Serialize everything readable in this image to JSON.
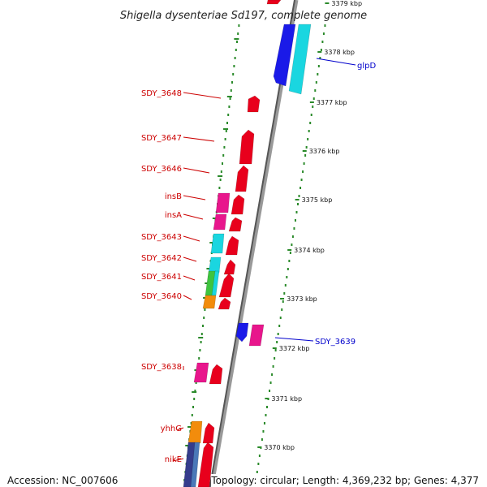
{
  "title": "Shigella dysenteriae Sd197, complete genome",
  "accession_text": "Accession: NC_007606",
  "topology_text": "Topology: circular; Length: 4,369,232 bp; Genes: 4,377",
  "colors": {
    "red": "#e8001c",
    "magenta": "#e8168c",
    "cyan": "#1ad6e0",
    "blue": "#1a1ae8",
    "orange": "#f28c0c",
    "green": "#3ec43e",
    "steelblue": "#4a78b8",
    "navy": "#353c8c",
    "track_dot": "#2a8a2a",
    "label_red": "#cc0000",
    "label_blue": "#0000cc"
  },
  "scale_ticks": [
    "3379 kbp",
    "3378 kbp",
    "3377 kbp",
    "3376 kbp",
    "3375 kbp",
    "3374 kbp",
    "3373 kbp",
    "3372 kbp",
    "3371 kbp",
    "3370 kbp"
  ],
  "gene_labels_left": [
    "SDY_3648",
    "SDY_3647",
    "SDY_3646",
    "insB",
    "insA",
    "SDY_3643",
    "SDY_3642",
    "SDY_3641",
    "SDY_3640",
    "SDY_3638",
    "yhhG",
    "nikE"
  ],
  "gene_labels_right": [
    "glpD",
    "SDY_3639"
  ]
}
